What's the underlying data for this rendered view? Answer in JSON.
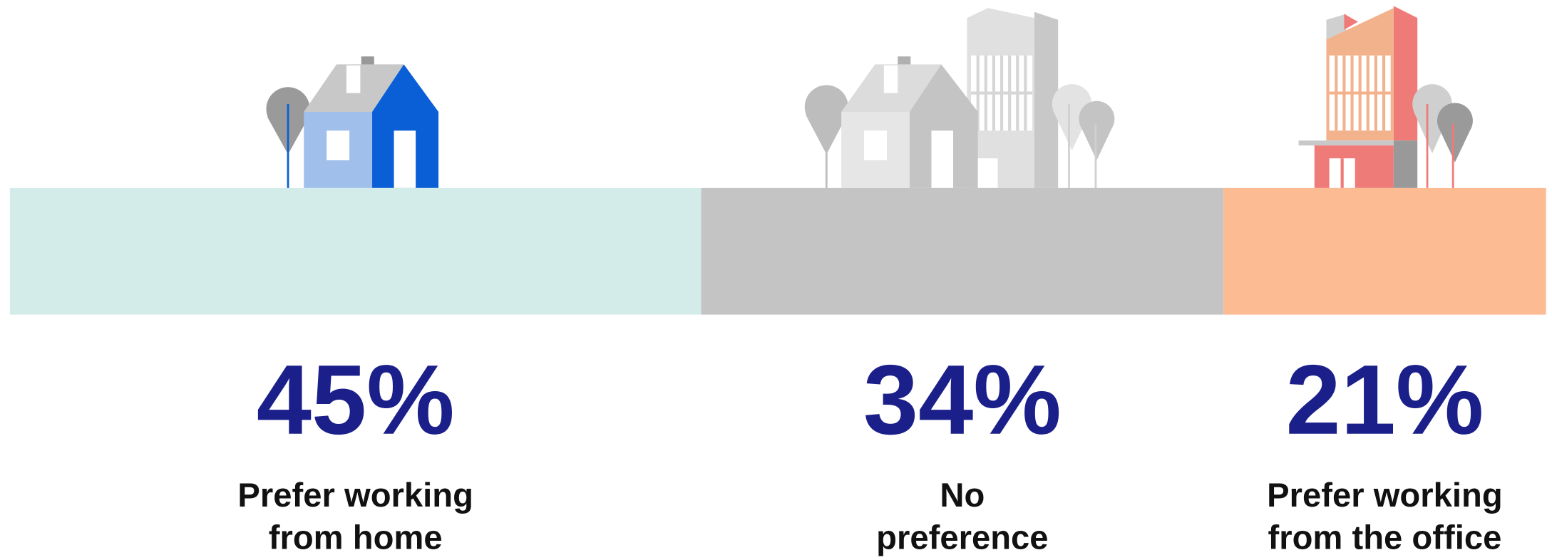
{
  "chart_data": {
    "type": "stacked_bar",
    "categories": [
      "Prefer working\nfrom home",
      "No\npreference",
      "Prefer working\nfrom the office"
    ],
    "values": [
      45,
      34,
      21
    ],
    "value_labels": [
      "45%",
      "34%",
      "21%"
    ],
    "colors": [
      "#d3ecea",
      "#c4c4c4",
      "#fdbb94"
    ]
  }
}
